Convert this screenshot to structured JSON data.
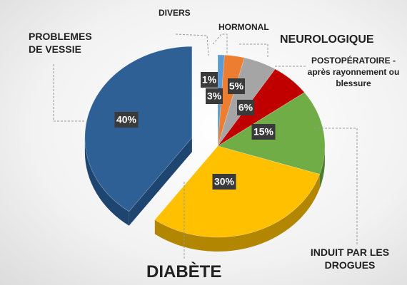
{
  "chart_data": {
    "type": "pie",
    "categories": [
      "DIVERS",
      "HORMONAL",
      "NEUROLOGIQUE",
      "POSTOPÉRATOIRE - après rayonnement ou blessure",
      "INDUIT PAR LES DROGUES",
      "DIABÈTE",
      "PROBLEMES DE VESSIE"
    ],
    "values": [
      1,
      3,
      5,
      6,
      15,
      30,
      40
    ],
    "value_labels": [
      "1%",
      "3%",
      "5%",
      "6%",
      "15%",
      "30%",
      "40%"
    ],
    "colors": [
      "#5b9bd5",
      "#ed7d31",
      "#a5a5a5",
      "#c00000",
      "#70ad47",
      "#ffc000",
      "#2e6096"
    ],
    "side_colors": [
      "#3d76aa",
      "#b35a1c",
      "#777777",
      "#800000",
      "#4d7d2f",
      "#b38600",
      "#1e4470"
    ]
  }
}
